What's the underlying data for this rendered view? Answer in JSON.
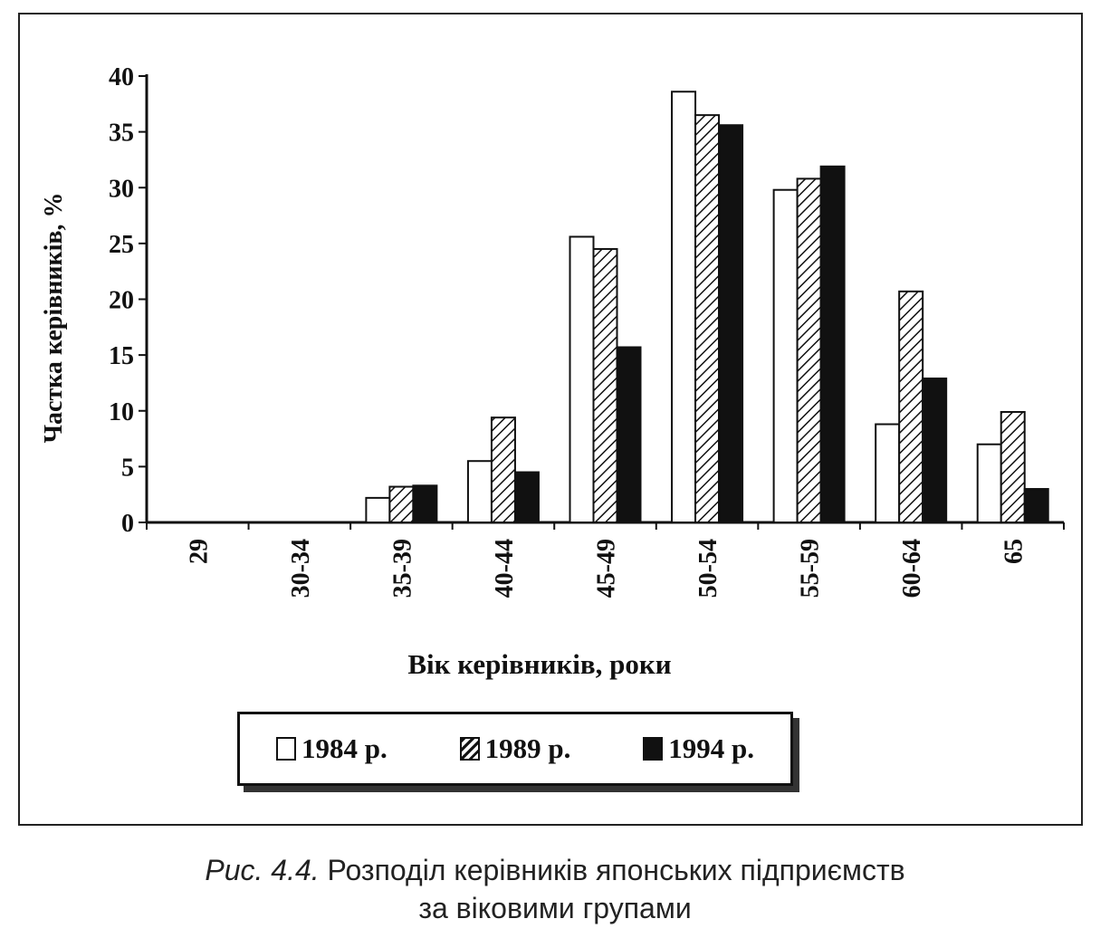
{
  "chart_data": {
    "type": "bar",
    "title": "",
    "xlabel": "Вік керівників, роки",
    "ylabel": "Частка керівників, %",
    "categories": [
      "29",
      "30-34",
      "35-39",
      "40-44",
      "45-49",
      "50-54",
      "55-59",
      "60-64",
      "65"
    ],
    "series": [
      {
        "name": "1984 р.",
        "pattern": "white",
        "values": [
          0,
          0,
          2.2,
          5.5,
          25.6,
          38.6,
          29.8,
          8.8,
          7.0
        ]
      },
      {
        "name": "1989 р.",
        "pattern": "hatched",
        "values": [
          0,
          0,
          3.2,
          9.4,
          24.5,
          36.5,
          30.8,
          20.7,
          9.9
        ]
      },
      {
        "name": "1994 р.",
        "pattern": "black",
        "values": [
          0,
          0,
          3.3,
          4.5,
          15.7,
          35.6,
          31.9,
          12.9,
          3.0
        ]
      }
    ],
    "ylim": [
      0,
      40
    ],
    "yticks": [
      0,
      5,
      10,
      15,
      20,
      25,
      30,
      35,
      40
    ],
    "grid": false,
    "legend_position": "bottom",
    "colors": {
      "ink": "#111111",
      "background": "#ffffff"
    }
  },
  "caption": {
    "prefix": "Рис. 4.4.",
    "line1": " Розподіл керівників японських підприємств",
    "line2": "за віковими групами"
  }
}
